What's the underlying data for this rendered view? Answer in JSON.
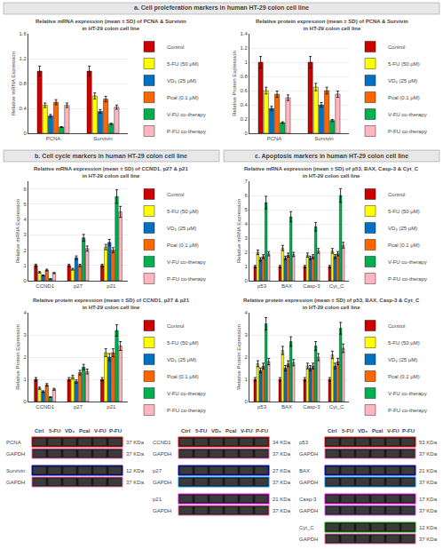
{
  "chart_data": [
    {
      "type": "bar",
      "title": "Relative mRNA expression (mean ± SD) of PCNA & Survivin\nin HT-29 colon cell line",
      "annotations": [
        "a. Cell proleferation markers in human HT-29 colon cell line"
      ],
      "ylabel": "Relative mRNA Expression",
      "categories": [
        "PCNA",
        "Survivin"
      ],
      "series": [
        {
          "name": "Control",
          "color": "#cc0000",
          "values": [
            1.0,
            1.0
          ],
          "errors": [
            0.08,
            0.08
          ]
        },
        {
          "name": "5-FU (50 μM)",
          "color": "#ffff00",
          "values": [
            0.45,
            0.6
          ],
          "errors": [
            0.036,
            0.048
          ]
        },
        {
          "name": "VD₃ (25 μM)",
          "color": "#0070c0",
          "values": [
            0.28,
            0.35
          ],
          "errors": [
            0.0224,
            0.028
          ]
        },
        {
          "name": "Pcal (0.1 μM)",
          "color": "#ff6600",
          "values": [
            0.5,
            0.55
          ],
          "errors": [
            0.04,
            0.044
          ]
        },
        {
          "name": "V-FU co-therapy",
          "color": "#00b050",
          "values": [
            0.1,
            0.15
          ],
          "errors": [
            0.008,
            0.012
          ]
        },
        {
          "name": "P-FU co-therapy",
          "color": "#ffb6c1",
          "values": [
            0.45,
            0.42
          ],
          "errors": [
            0.036,
            0.0336
          ]
        }
      ],
      "ylim": [
        0,
        1.6
      ],
      "yticks": [
        0,
        0.4,
        0.8,
        1.2,
        1.6
      ],
      "grid": true,
      "legend": "right"
    },
    {
      "type": "bar",
      "title": "Relative protein expression (mean ± SD) of PCNA & Survivin\nin HT-29 colon cell line",
      "ylabel": "Relative Protein Expression",
      "categories": [
        "PCNA",
        "Survivin"
      ],
      "series": [
        {
          "name": "Control",
          "color": "#cc0000",
          "values": [
            1.0,
            1.0
          ],
          "errors": [
            0.08,
            0.08
          ]
        },
        {
          "name": "5-FU (50 μM)",
          "color": "#ffff00",
          "values": [
            0.6,
            0.65
          ],
          "errors": [
            0.048,
            0.052
          ]
        },
        {
          "name": "VD₃ (25 μM)",
          "color": "#0070c0",
          "values": [
            0.35,
            0.4
          ],
          "errors": [
            0.028,
            0.032
          ]
        },
        {
          "name": "Pcal (0.1 μM)",
          "color": "#ff6600",
          "values": [
            0.55,
            0.6
          ],
          "errors": [
            0.044,
            0.048
          ]
        },
        {
          "name": "V-FU co-therapy",
          "color": "#00b050",
          "values": [
            0.15,
            0.18
          ],
          "errors": [
            0.012,
            0.0144
          ]
        },
        {
          "name": "P-FU co-therapy",
          "color": "#ffb6c1",
          "values": [
            0.5,
            0.55
          ],
          "errors": [
            0.04,
            0.044
          ]
        }
      ],
      "ylim": [
        0,
        1.4
      ],
      "yticks": [
        0,
        0.2,
        0.4,
        0.6,
        0.8,
        1,
        1.2,
        1.4
      ],
      "grid": true,
      "legend": "right"
    },
    {
      "type": "blot",
      "categories": [
        "Ctrl",
        "5-FU",
        "VD₃",
        "Pcal",
        "V-FU",
        "P-FU"
      ],
      "series": [
        {
          "name": "PCNA",
          "label": "37 KDa",
          "color": "#ff0000"
        },
        {
          "name": "GAPDH",
          "label": "37 KDa",
          "color": "#ff69b4"
        },
        null,
        {
          "name": "Survivin",
          "label": "12 KDa",
          "color": "#0000cc"
        },
        {
          "name": "GAPDH",
          "label": "37 KDa",
          "color": "#ff69b4"
        }
      ]
    },
    {
      "type": "bar",
      "title": "Relative mRNA expression (mean ± SD) of CCND1, p27 & p21\nin HT-29 colon cell line",
      "annotations": [
        "b. Cell cycle markers in human HT-29 colon cell line"
      ],
      "ylabel": "Relative mRNA Expression",
      "categories": [
        "CCND1",
        "p27",
        "p21"
      ],
      "series": [
        {
          "name": "Control",
          "color": "#cc0000",
          "values": [
            1.0,
            1.0,
            1.0
          ],
          "errors": [
            0.08,
            0.08,
            0.08
          ]
        },
        {
          "name": "5-FU (50 μM)",
          "color": "#ffff00",
          "values": [
            0.55,
            0.75,
            2.2
          ],
          "errors": [
            0.044,
            0.06,
            0.176
          ]
        },
        {
          "name": "VD₃ (25 μM)",
          "color": "#0070c0",
          "values": [
            0.35,
            1.5,
            2.5
          ],
          "errors": [
            0.028,
            0.12,
            0.2
          ]
        },
        {
          "name": "Pcal (0.1 μM)",
          "color": "#ff6600",
          "values": [
            0.7,
            1.0,
            2.0
          ],
          "errors": [
            0.056,
            0.08,
            0.16
          ]
        },
        {
          "name": "V-FU co-therapy",
          "color": "#00b050",
          "values": [
            0.12,
            2.8,
            5.5
          ],
          "errors": [
            0.0096,
            0.224,
            0.44
          ]
        },
        {
          "name": "P-FU co-therapy",
          "color": "#ffb6c1",
          "values": [
            0.5,
            2.1,
            4.5
          ],
          "errors": [
            0.04,
            0.168,
            0.36
          ]
        }
      ],
      "ylim": [
        0,
        6.5
      ],
      "yticks": [
        0,
        1,
        2,
        3,
        4,
        5,
        6
      ],
      "grid": true,
      "legend": "right"
    },
    {
      "type": "bar",
      "title": "Relative mRNA expression (mean ± SD) of p53, BAX, Casp-3 & Cyt_C\nin HT-29 colon cell line",
      "annotations": [
        "c. Apoptosis markers in human HT-29 colon cell line"
      ],
      "ylabel": "Relative mRNA Expression",
      "categories": [
        "p53",
        "BAX",
        "Casp-3",
        "Cyt_C"
      ],
      "series": [
        {
          "name": "Control",
          "color": "#cc0000",
          "values": [
            1.0,
            1.0,
            1.0,
            1.0
          ],
          "errors": [
            0.08,
            0.08,
            0.08,
            0.08
          ]
        },
        {
          "name": "5-FU (50 μM)",
          "color": "#ffff00",
          "values": [
            2.0,
            2.3,
            1.8,
            2.1
          ],
          "errors": [
            0.16,
            0.184,
            0.144,
            0.168
          ]
        },
        {
          "name": "VD₃ (25 μM)",
          "color": "#0070c0",
          "values": [
            1.5,
            1.6,
            1.6,
            1.7
          ],
          "errors": [
            0.12,
            0.128,
            0.128,
            0.136
          ]
        },
        {
          "name": "Pcal (0.1 μM)",
          "color": "#ff6600",
          "values": [
            1.7,
            1.8,
            1.7,
            1.9
          ],
          "errors": [
            0.136,
            0.144,
            0.136,
            0.152
          ]
        },
        {
          "name": "V-FU co-therapy",
          "color": "#00b050",
          "values": [
            5.5,
            4.5,
            3.8,
            6.0
          ],
          "errors": [
            0.44,
            0.36,
            0.304,
            0.48
          ]
        },
        {
          "name": "P-FU co-therapy",
          "color": "#ffb6c1",
          "values": [
            1.9,
            1.85,
            2.1,
            2.5
          ],
          "errors": [
            0.152,
            0.148,
            0.168,
            0.2
          ]
        }
      ],
      "ylim": [
        0,
        7.0
      ],
      "yticks": [
        0,
        1,
        2,
        3,
        4,
        5,
        6,
        7
      ],
      "grid": true,
      "legend": "right"
    },
    {
      "type": "bar",
      "title": "Relative protein expression (mean ± SD) of CCND1, p27 & p21\nin HT-29 colon cell line",
      "ylabel": "Relative Protein Expression",
      "categories": [
        "CCND1",
        "p27",
        "p21"
      ],
      "series": [
        {
          "name": "Control",
          "color": "#cc0000",
          "values": [
            1.0,
            1.0,
            1.0
          ],
          "errors": [
            0.08,
            0.08,
            0.08
          ]
        },
        {
          "name": "5-FU (50 μM)",
          "color": "#ffff00",
          "values": [
            0.6,
            1.1,
            2.2
          ],
          "errors": [
            0.048,
            0.088,
            0.176
          ]
        },
        {
          "name": "VD₃ (25 μM)",
          "color": "#0070c0",
          "values": [
            0.45,
            0.9,
            2.0
          ],
          "errors": [
            0.036,
            0.072,
            0.16
          ]
        },
        {
          "name": "Pcal (0.1 μM)",
          "color": "#ff6600",
          "values": [
            0.75,
            1.3,
            2.2
          ],
          "errors": [
            0.06,
            0.104,
            0.176
          ]
        },
        {
          "name": "V-FU co-therapy",
          "color": "#00b050",
          "values": [
            0.2,
            1.55,
            3.2
          ],
          "errors": [
            0.016,
            0.124,
            0.256
          ]
        },
        {
          "name": "P-FU co-therapy",
          "color": "#ffb6c1",
          "values": [
            0.55,
            1.35,
            2.5
          ],
          "errors": [
            0.044,
            0.108,
            0.2
          ]
        }
      ],
      "ylim": [
        0,
        4.0
      ],
      "yticks": [
        0,
        1,
        2,
        3,
        4
      ],
      "grid": true,
      "legend": "right"
    },
    {
      "type": "bar",
      "title": "Relative protein expression (mean ± SD) of p53, BAX, Casp-3 & Cyt_C\nin HT-29 colon cell line",
      "ylabel": "Relative Protein Expression",
      "categories": [
        "p53",
        "BAX",
        "Casp-3",
        "Cyt_C"
      ],
      "series": [
        {
          "name": "Control",
          "color": "#cc0000",
          "values": [
            1.0,
            1.0,
            1.0,
            1.0
          ],
          "errors": [
            0.08,
            0.08,
            0.08,
            0.08
          ]
        },
        {
          "name": "5-FU (50 μM)",
          "color": "#ffff00",
          "values": [
            1.7,
            2.3,
            1.6,
            2.1
          ],
          "errors": [
            0.136,
            0.184,
            0.128,
            0.168
          ]
        },
        {
          "name": "VD₃ (25 μM)",
          "color": "#0070c0",
          "values": [
            1.4,
            1.5,
            1.5,
            1.6
          ],
          "errors": [
            0.112,
            0.12,
            0.12,
            0.128
          ]
        },
        {
          "name": "Pcal (0.1 μM)",
          "color": "#ff6600",
          "values": [
            1.6,
            1.7,
            1.6,
            1.8
          ],
          "errors": [
            0.128,
            0.136,
            0.128,
            0.144
          ]
        },
        {
          "name": "V-FU co-therapy",
          "color": "#00b050",
          "values": [
            3.5,
            2.7,
            2.5,
            3.3
          ],
          "errors": [
            0.28,
            0.216,
            0.2,
            0.264
          ]
        },
        {
          "name": "P-FU co-therapy",
          "color": "#ffb6c1",
          "values": [
            1.8,
            1.75,
            2.0,
            2.4
          ],
          "errors": [
            0.144,
            0.14,
            0.16,
            0.192
          ]
        }
      ],
      "ylim": [
        0,
        4.0
      ],
      "yticks": [
        0,
        1,
        2,
        3,
        4
      ],
      "grid": true,
      "legend": "right"
    },
    {
      "type": "blot",
      "categories": [
        "Ctrl",
        "5-FU",
        "VD₃",
        "Pcal",
        "V-FU",
        "P-FU"
      ],
      "series": [
        {
          "name": "CCND1",
          "label": "34 KDa",
          "color": "#ff0000"
        },
        {
          "name": "GAPDH",
          "label": "37 KDa",
          "color": "#ff69b4"
        },
        null,
        {
          "name": "p27",
          "label": "27 KDa",
          "color": "#0000ff"
        },
        {
          "name": "GAPDH",
          "label": "37 KDa",
          "color": "#0099ff"
        },
        null,
        {
          "name": "p21",
          "label": "21 KDa",
          "color": "#ff00ff"
        },
        {
          "name": "GAPDH",
          "label": "37 KDa",
          "color": "#ff69b4"
        }
      ]
    },
    {
      "type": "blot",
      "categories": [
        "Ctrl",
        "5-FU",
        "VD₃",
        "Pcal",
        "V-FU",
        "P-FU"
      ],
      "series": [
        {
          "name": "p53",
          "label": "53 KDa",
          "color": "#ff0000"
        },
        {
          "name": "GAPDH",
          "label": "37 KDa",
          "color": "#ff69b4"
        },
        null,
        {
          "name": "BAX",
          "label": "21 KDa",
          "color": "#0000ff"
        },
        {
          "name": "GAPDH",
          "label": "37 KDa",
          "color": "#0099ff"
        },
        null,
        {
          "name": "Casp-3",
          "label": "17 KDa",
          "color": "#ff00ff"
        },
        {
          "name": "GAPDH",
          "label": "37 KDa",
          "color": "#cc66ff"
        },
        null,
        {
          "name": "Cyt_C",
          "label": "12 KDa",
          "color": "#00aa00"
        },
        {
          "name": "GAPDH",
          "label": "37 KDa",
          "color": "#ff69b4"
        }
      ]
    }
  ]
}
